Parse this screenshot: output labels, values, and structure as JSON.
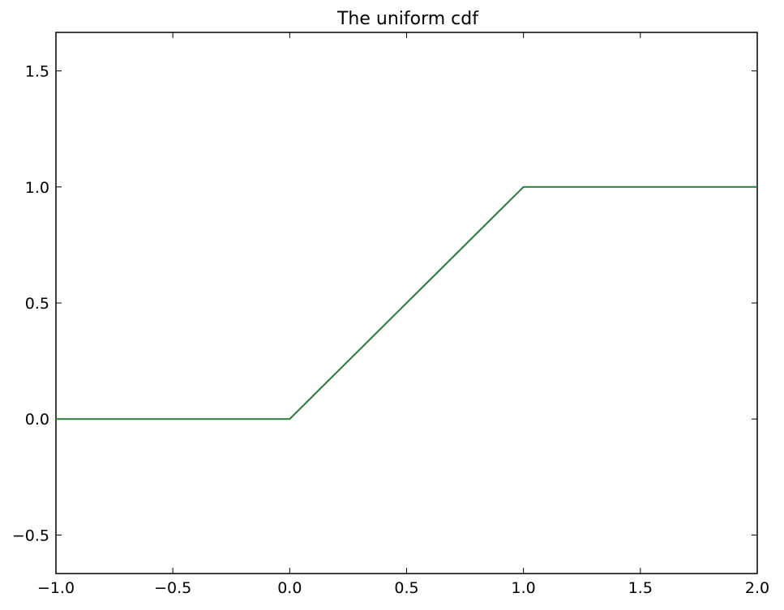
{
  "chart_data": {
    "type": "line",
    "title": "The uniform cdf",
    "xlabel": "",
    "ylabel": "",
    "xlim": [
      -1.0,
      2.0
    ],
    "ylim": [
      -0.666,
      1.666
    ],
    "x_ticks": [
      -1.0,
      -0.5,
      0.0,
      0.5,
      1.0,
      1.5,
      2.0
    ],
    "x_tick_labels": [
      "−1.0",
      "−0.5",
      "0.0",
      "0.5",
      "1.0",
      "1.5",
      "2.0"
    ],
    "y_ticks": [
      -0.5,
      0.0,
      0.5,
      1.0,
      1.5
    ],
    "y_tick_labels": [
      "−0.5",
      "0.0",
      "0.5",
      "1.0",
      "1.5"
    ],
    "grid": false,
    "legend": "none",
    "series": [
      {
        "color": "#2a7a3b",
        "x": [
          -1.0,
          0.0,
          1.0,
          2.0
        ],
        "y": [
          0.0,
          0.0,
          1.0,
          1.0
        ]
      }
    ]
  }
}
